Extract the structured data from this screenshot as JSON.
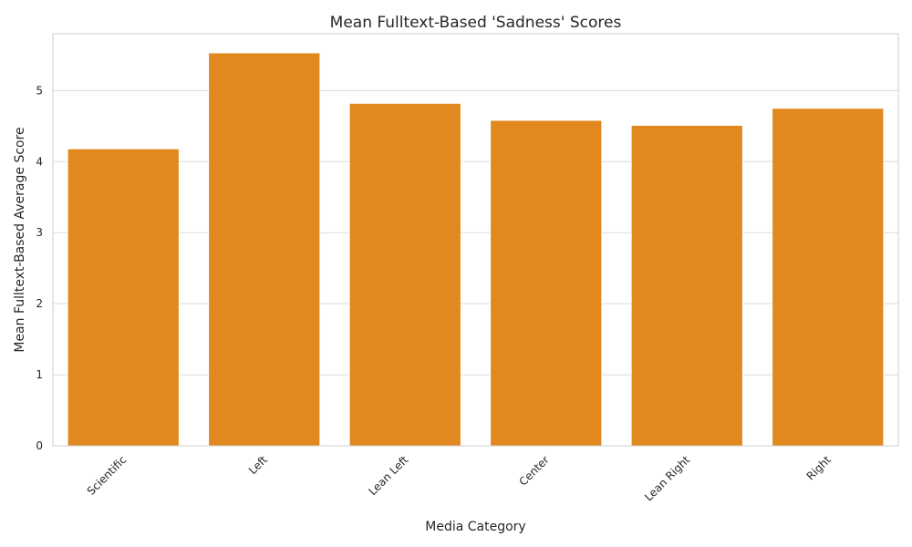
{
  "chart_data": {
    "type": "bar",
    "title": "Mean Fulltext-Based 'Sadness' Scores",
    "xlabel": "Media Category",
    "ylabel": "Mean Fulltext-Based Average Score",
    "categories": [
      "Scientific",
      "Left",
      "Lean Left",
      "Center",
      "Lean Right",
      "Right"
    ],
    "values": [
      4.18,
      5.53,
      4.82,
      4.58,
      4.51,
      4.75
    ],
    "ylim": [
      0,
      5.8
    ],
    "yticks": [
      "0",
      "1",
      "2",
      "3",
      "4",
      "5"
    ],
    "grid": "y-major",
    "bar_color": "#e1881e",
    "legend": "none"
  }
}
